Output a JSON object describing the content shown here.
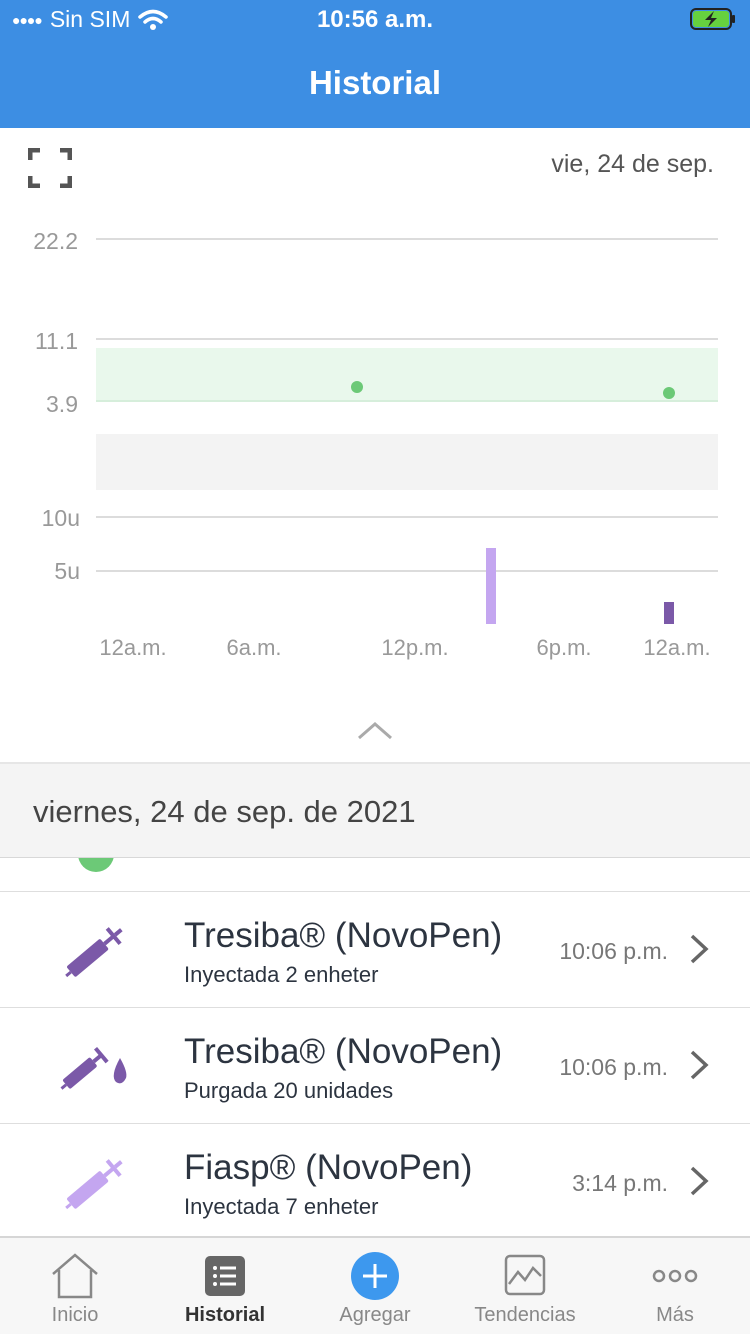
{
  "status_bar": {
    "carrier": "Sin SIM",
    "time": "10:56 a.m."
  },
  "nav": {
    "title": "Historial"
  },
  "chart": {
    "date_label": "vie, 24 de sep."
  },
  "chart_data": [
    {
      "type": "scatter",
      "title": "",
      "xlabel": "",
      "ylabel": "",
      "y_tick_labels": [
        "22.2",
        "11.1",
        "3.9"
      ],
      "x_tick_labels": [
        "12a.m.",
        "6a.m.",
        "12p.m.",
        "6p.m.",
        "12a.m."
      ],
      "target_range": [
        3.9,
        11.1
      ],
      "series": [
        {
          "x": [
            "10:06 a.m.",
            "11:30 p.m."
          ],
          "values": [
            7.3,
            6.9
          ]
        }
      ],
      "colors": {
        "points": "#6cc977",
        "target_band": "#e9f8ec"
      }
    },
    {
      "type": "bar",
      "title": "",
      "xlabel": "",
      "ylabel": "",
      "y_tick_labels": [
        "10u",
        "5u"
      ],
      "series": [
        {
          "x": "3:14 p.m.",
          "value": 7,
          "color": "#c4a6f0"
        },
        {
          "x": "10:06 p.m.",
          "value": 2,
          "color": "#7b59a8"
        }
      ]
    }
  ],
  "list": {
    "date_header": "viernes, 24 de sep. de 2021",
    "rows": [
      {
        "title": "Tresiba® (NovoPen)",
        "subtitle": "Inyectada 2 enheter",
        "time": "10:06 p.m.",
        "icon": "syringe-icon",
        "color": "#7b59a8"
      },
      {
        "title": "Tresiba® (NovoPen)",
        "subtitle": "Purgada 20 unidades",
        "time": "10:06 p.m.",
        "icon": "syringe-drop-icon",
        "color": "#7b59a8"
      },
      {
        "title": "Fiasp® (NovoPen)",
        "subtitle": "Inyectada 7 enheter",
        "time": "3:14 p.m.",
        "icon": "syringe-icon",
        "color": "#c4a6f0"
      }
    ]
  },
  "tabbar": {
    "items": [
      {
        "label": "Inicio",
        "icon": "home-icon"
      },
      {
        "label": "Historial",
        "icon": "list-icon"
      },
      {
        "label": "Agregar",
        "icon": "add-icon"
      },
      {
        "label": "Tendencias",
        "icon": "trends-icon"
      },
      {
        "label": "Más",
        "icon": "more-icon"
      }
    ]
  },
  "colors": {
    "header_blue": "#3d8ee3",
    "accent_blue": "#3d98ee"
  }
}
